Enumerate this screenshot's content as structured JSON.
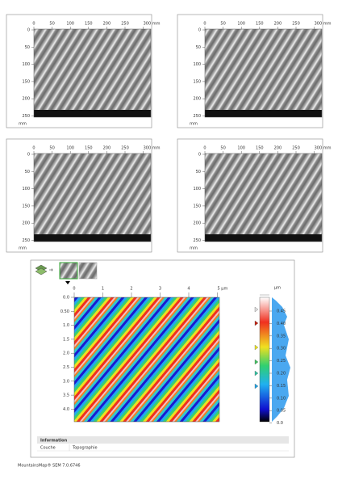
{
  "panels": [
    {
      "x_ticks": [
        "0",
        "50",
        "100",
        "150",
        "200",
        "250",
        "300 mm"
      ],
      "y_ticks": [
        "0",
        "50",
        "100",
        "150",
        "200",
        "250"
      ],
      "y_unit": "mm"
    },
    {
      "x_ticks": [
        "0",
        "50",
        "100",
        "150",
        "200",
        "250",
        "300 mm"
      ],
      "y_ticks": [
        "0",
        "50",
        "100",
        "150",
        "200",
        "250"
      ],
      "y_unit": "mm"
    },
    {
      "x_ticks": [
        "0",
        "50",
        "100",
        "150",
        "200",
        "250",
        "300 mm"
      ],
      "y_ticks": [
        "0",
        "50",
        "100",
        "150",
        "200",
        "250"
      ],
      "y_unit": "mm"
    },
    {
      "x_ticks": [
        "0",
        "50",
        "100",
        "150",
        "200",
        "250",
        "300 mm"
      ],
      "y_ticks": [
        "0",
        "50",
        "100",
        "150",
        "200",
        "250"
      ],
      "y_unit": "mm"
    }
  ],
  "topography": {
    "x_ticks": [
      "0",
      "1",
      "2",
      "3",
      "4",
      "5 µm"
    ],
    "y_ticks": [
      "0.0",
      "0.50",
      "1.0",
      "1.5",
      "2.0",
      "2.5",
      "3.0",
      "3.5",
      "4.0"
    ],
    "scale_unit": "µm",
    "scale_ticks": [
      "0.45",
      "0.40",
      "0.35",
      "0.30",
      "0.25",
      "0.20",
      "0.15",
      "0.10",
      "0.05",
      "0.0"
    ],
    "info_header": "Information",
    "info_rows": [
      [
        "Couche",
        "Topographie"
      ]
    ]
  },
  "footer": "MountainsMap® SEM 7.0.6746"
}
